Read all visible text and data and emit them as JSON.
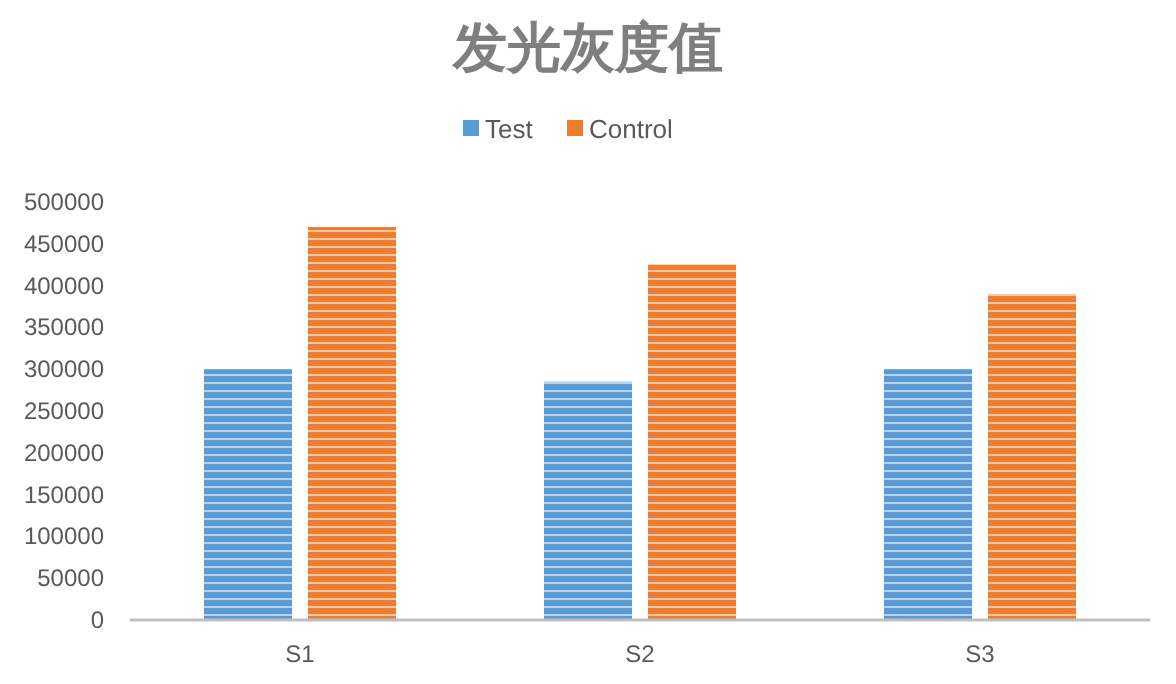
{
  "chart_data": {
    "type": "bar",
    "title": "发光灰度值",
    "categories": [
      "S1",
      "S2",
      "S3"
    ],
    "series": [
      {
        "name": "Test",
        "color": "#5b9bd5",
        "values": [
          300000,
          285000,
          300000
        ]
      },
      {
        "name": "Control",
        "color": "#ed7d31",
        "values": [
          470000,
          425000,
          390000
        ]
      }
    ],
    "ylim": [
      0,
      500000
    ],
    "yticks": [
      0,
      50000,
      100000,
      150000,
      200000,
      250000,
      300000,
      350000,
      400000,
      450000,
      500000
    ],
    "grid": false,
    "legend": "top"
  }
}
